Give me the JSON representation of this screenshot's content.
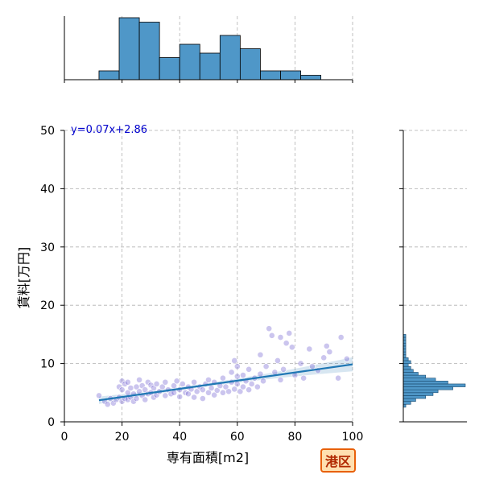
{
  "chart_data": {
    "type": "scatter",
    "xlabel": "専有面積[m2]",
    "ylabel": "賃料[万円]",
    "xlim": [
      0,
      100
    ],
    "ylim": [
      0,
      50
    ],
    "x_ticks": [
      "0",
      "20",
      "40",
      "60",
      "80",
      "100"
    ],
    "y_ticks": [
      "0",
      "10",
      "20",
      "30",
      "40",
      "50"
    ],
    "grid": true,
    "annotation": "y=0.07x+2.86",
    "annotation_color": "#0000cc",
    "badge": "港区",
    "regression": {
      "slope": 0.07,
      "intercept": 2.86,
      "x_range": [
        12,
        100
      ],
      "color": "#1f77b4"
    },
    "point_color": "#6a5acd",
    "hist_color": "#4f97c8",
    "x_hist": {
      "bin_edges": [
        12,
        19,
        26,
        33,
        40,
        47,
        54,
        61,
        68,
        75,
        82,
        89,
        96
      ],
      "counts": [
        2,
        14,
        13,
        5,
        8,
        6,
        10,
        7,
        2,
        2,
        1,
        0
      ]
    },
    "y_hist": {
      "bin_edges": [
        2.5,
        3,
        3.5,
        4,
        4.5,
        5,
        5.5,
        6,
        6.5,
        7,
        7.5,
        8,
        8.5,
        9,
        9.5,
        10,
        10.5,
        11,
        11.5,
        12,
        12.5,
        13,
        13.5,
        14,
        14.5,
        15
      ],
      "counts": [
        1,
        3,
        5,
        9,
        12,
        14,
        20,
        25,
        18,
        13,
        9,
        6,
        4,
        3,
        2,
        3,
        2,
        1,
        1,
        1,
        1,
        1,
        1,
        1,
        1
      ]
    },
    "points": [
      {
        "x": 12,
        "y": 4.5
      },
      {
        "x": 14,
        "y": 3.5
      },
      {
        "x": 15,
        "y": 3.0
      },
      {
        "x": 16,
        "y": 4.0
      },
      {
        "x": 17,
        "y": 3.2
      },
      {
        "x": 18,
        "y": 3.8
      },
      {
        "x": 19,
        "y": 4.2
      },
      {
        "x": 19,
        "y": 6.0
      },
      {
        "x": 20,
        "y": 3.5
      },
      {
        "x": 20,
        "y": 5.5
      },
      {
        "x": 20,
        "y": 7.0
      },
      {
        "x": 21,
        "y": 4.0
      },
      {
        "x": 21,
        "y": 6.5
      },
      {
        "x": 22,
        "y": 3.8
      },
      {
        "x": 22,
        "y": 5.0
      },
      {
        "x": 22,
        "y": 6.8
      },
      {
        "x": 23,
        "y": 4.2
      },
      {
        "x": 23,
        "y": 5.8
      },
      {
        "x": 24,
        "y": 3.5
      },
      {
        "x": 24,
        "y": 4.8
      },
      {
        "x": 25,
        "y": 6.0
      },
      {
        "x": 25,
        "y": 4.0
      },
      {
        "x": 26,
        "y": 5.2
      },
      {
        "x": 26,
        "y": 7.2
      },
      {
        "x": 27,
        "y": 4.5
      },
      {
        "x": 27,
        "y": 6.2
      },
      {
        "x": 28,
        "y": 3.8
      },
      {
        "x": 28,
        "y": 5.5
      },
      {
        "x": 29,
        "y": 4.8
      },
      {
        "x": 29,
        "y": 6.8
      },
      {
        "x": 30,
        "y": 5.0
      },
      {
        "x": 30,
        "y": 6.3
      },
      {
        "x": 31,
        "y": 4.2
      },
      {
        "x": 31,
        "y": 5.8
      },
      {
        "x": 32,
        "y": 6.5
      },
      {
        "x": 32,
        "y": 4.6
      },
      {
        "x": 33,
        "y": 5.2
      },
      {
        "x": 34,
        "y": 6.0
      },
      {
        "x": 35,
        "y": 4.5
      },
      {
        "x": 35,
        "y": 6.8
      },
      {
        "x": 36,
        "y": 5.5
      },
      {
        "x": 37,
        "y": 4.8
      },
      {
        "x": 38,
        "y": 6.2
      },
      {
        "x": 38,
        "y": 5.0
      },
      {
        "x": 39,
        "y": 7.0
      },
      {
        "x": 40,
        "y": 5.5
      },
      {
        "x": 40,
        "y": 4.3
      },
      {
        "x": 41,
        "y": 6.5
      },
      {
        "x": 42,
        "y": 5.0
      },
      {
        "x": 43,
        "y": 6.0
      },
      {
        "x": 43,
        "y": 4.8
      },
      {
        "x": 44,
        "y": 5.6
      },
      {
        "x": 45,
        "y": 4.2
      },
      {
        "x": 45,
        "y": 6.8
      },
      {
        "x": 46,
        "y": 5.2
      },
      {
        "x": 47,
        "y": 6.0
      },
      {
        "x": 48,
        "y": 5.5
      },
      {
        "x": 48,
        "y": 4.0
      },
      {
        "x": 49,
        "y": 6.5
      },
      {
        "x": 50,
        "y": 5.0
      },
      {
        "x": 50,
        "y": 7.2
      },
      {
        "x": 51,
        "y": 5.8
      },
      {
        "x": 52,
        "y": 4.6
      },
      {
        "x": 52,
        "y": 6.8
      },
      {
        "x": 53,
        "y": 5.4
      },
      {
        "x": 54,
        "y": 6.2
      },
      {
        "x": 55,
        "y": 5.0
      },
      {
        "x": 55,
        "y": 7.5
      },
      {
        "x": 56,
        "y": 6.0
      },
      {
        "x": 57,
        "y": 5.2
      },
      {
        "x": 58,
        "y": 6.8
      },
      {
        "x": 58,
        "y": 8.5
      },
      {
        "x": 59,
        "y": 10.5
      },
      {
        "x": 59,
        "y": 5.6
      },
      {
        "x": 60,
        "y": 6.5
      },
      {
        "x": 60,
        "y": 9.5
      },
      {
        "x": 60,
        "y": 7.8
      },
      {
        "x": 61,
        "y": 5.2
      },
      {
        "x": 62,
        "y": 6.0
      },
      {
        "x": 62,
        "y": 8.0
      },
      {
        "x": 63,
        "y": 7.0
      },
      {
        "x": 64,
        "y": 5.5
      },
      {
        "x": 64,
        "y": 9.0
      },
      {
        "x": 65,
        "y": 6.5
      },
      {
        "x": 66,
        "y": 7.5
      },
      {
        "x": 67,
        "y": 6.0
      },
      {
        "x": 68,
        "y": 8.2
      },
      {
        "x": 68,
        "y": 11.5
      },
      {
        "x": 69,
        "y": 7.0
      },
      {
        "x": 70,
        "y": 9.5
      },
      {
        "x": 71,
        "y": 16.0
      },
      {
        "x": 72,
        "y": 14.8
      },
      {
        "x": 73,
        "y": 8.5
      },
      {
        "x": 74,
        "y": 10.5
      },
      {
        "x": 75,
        "y": 14.5
      },
      {
        "x": 75,
        "y": 7.2
      },
      {
        "x": 76,
        "y": 9.0
      },
      {
        "x": 77,
        "y": 13.5
      },
      {
        "x": 78,
        "y": 15.2
      },
      {
        "x": 79,
        "y": 12.8
      },
      {
        "x": 80,
        "y": 8.0
      },
      {
        "x": 82,
        "y": 10.0
      },
      {
        "x": 83,
        "y": 7.5
      },
      {
        "x": 85,
        "y": 12.5
      },
      {
        "x": 86,
        "y": 9.5
      },
      {
        "x": 88,
        "y": 8.8
      },
      {
        "x": 90,
        "y": 11.0
      },
      {
        "x": 91,
        "y": 13.0
      },
      {
        "x": 92,
        "y": 12.0
      },
      {
        "x": 95,
        "y": 7.5
      },
      {
        "x": 96,
        "y": 14.5
      },
      {
        "x": 98,
        "y": 10.8
      }
    ]
  }
}
